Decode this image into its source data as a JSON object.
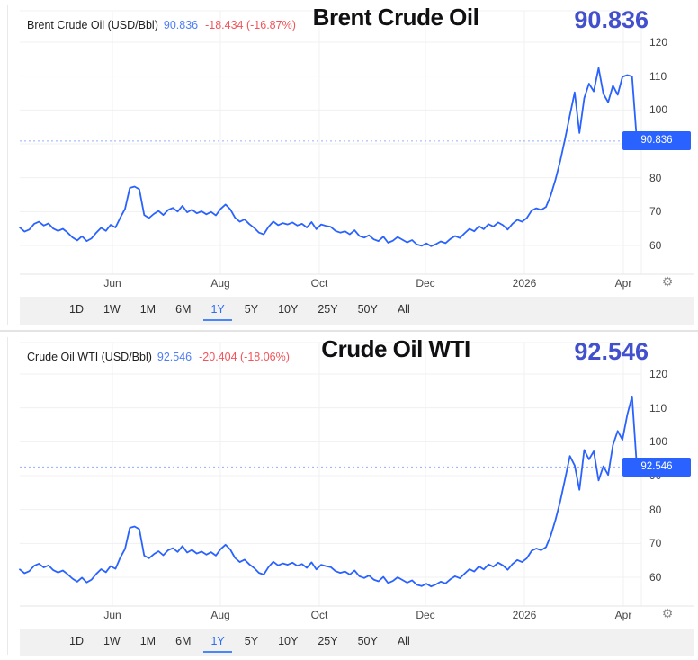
{
  "colors": {
    "line_blue": "#2962ff",
    "badge_bg": "#2962ff",
    "badge_text": "#ffffff",
    "big_price_blue": "#4350ce",
    "legend_price_blue": "#4e7df7",
    "change_red": "#f2545b",
    "grid": "#f0f0f0",
    "separator": "#e6e6e6",
    "toolbar_bg": "#f1f1f1",
    "active_range_blue": "#2e6ff2"
  },
  "icons": {
    "settings": "⚙"
  },
  "widgets": [
    {
      "legend": {
        "instrument": "Brent Crude Oil (USD/Bbl)",
        "price": "90.836",
        "change": "-18.434 (-16.87%)"
      },
      "title": "Brent Crude Oil",
      "big_price": "90.836",
      "axis_badge": "90.836",
      "range_buttons": [
        "1D",
        "1W",
        "1M",
        "6M",
        "1Y",
        "5Y",
        "10Y",
        "25Y",
        "50Y",
        "All"
      ],
      "active_range": "1Y"
    },
    {
      "legend": {
        "instrument": "Crude Oil WTI (USD/Bbl)",
        "price": "92.546",
        "change": "-20.404 (-18.06%)"
      },
      "title": "Crude Oil WTI",
      "big_price": "92.546",
      "axis_badge": "92.546",
      "range_buttons": [
        "1D",
        "1W",
        "1M",
        "6M",
        "1Y",
        "5Y",
        "10Y",
        "25Y",
        "50Y",
        "All"
      ],
      "active_range": "1Y"
    }
  ],
  "chart_data": [
    {
      "type": "line",
      "title": "Brent Crude Oil",
      "unit": "USD/Bbl",
      "legend_position": "top-left",
      "grid": true,
      "x_labels": [
        "Jun",
        "Aug",
        "Oct",
        "Dec",
        "2026",
        "Apr"
      ],
      "y_ticks": [
        120,
        110,
        100,
        90,
        80,
        70,
        60
      ],
      "ylim": [
        55,
        122
      ],
      "last_price": 90.836,
      "change": "-18.434",
      "change_pct": "-16.87%",
      "values": [
        65.3,
        64.1,
        64.7,
        66.4,
        67.0,
        65.9,
        66.5,
        65.0,
        64.3,
        64.9,
        63.8,
        62.4,
        61.5,
        62.7,
        61.3,
        62.1,
        63.8,
        65.2,
        64.3,
        66.1,
        65.3,
        68.2,
        70.8,
        77.0,
        77.4,
        76.6,
        69.0,
        68.1,
        69.3,
        70.2,
        69.0,
        70.5,
        71.1,
        70.0,
        71.7,
        69.8,
        70.6,
        69.5,
        70.1,
        69.2,
        69.9,
        68.9,
        70.8,
        72.1,
        70.7,
        68.2,
        67.0,
        67.7,
        66.3,
        65.2,
        63.8,
        63.3,
        65.5,
        67.1,
        66.0,
        66.6,
        66.2,
        66.8,
        65.9,
        66.4,
        65.3,
        66.9,
        64.8,
        66.2,
        65.8,
        65.5,
        64.3,
        63.8,
        64.2,
        63.3,
        64.5,
        62.8,
        62.3,
        63.0,
        61.8,
        61.3,
        62.6,
        60.8,
        61.4,
        62.5,
        61.7,
        60.9,
        61.6,
        60.3,
        59.9,
        60.6,
        59.8,
        60.4,
        61.2,
        60.7,
        61.9,
        62.8,
        62.2,
        63.6,
        64.9,
        64.2,
        65.7,
        64.8,
        66.3,
        65.6,
        66.8,
        66.0,
        64.7,
        66.4,
        67.6,
        67.0,
        68.1,
        70.3,
        71.0,
        70.5,
        71.4,
        74.8,
        79.5,
        85.0,
        91.5,
        98.5,
        105.2,
        93.2,
        103.5,
        107.8,
        105.5,
        112.4,
        104.8,
        102.3,
        107.2,
        104.5,
        109.8,
        110.3,
        109.9,
        90.836
      ]
    },
    {
      "type": "line",
      "title": "Crude Oil WTI",
      "unit": "USD/Bbl",
      "legend_position": "top-left",
      "grid": true,
      "x_labels": [
        "Jun",
        "Aug",
        "Oct",
        "Dec",
        "2026",
        "Apr"
      ],
      "y_ticks": [
        120,
        110,
        100,
        90,
        80,
        70,
        60
      ],
      "ylim": [
        55,
        122
      ],
      "last_price": 92.546,
      "change": "-20.404",
      "change_pct": "-18.06%",
      "values": [
        62.3,
        61.2,
        61.8,
        63.4,
        64.0,
        62.9,
        63.5,
        62.1,
        61.4,
        62.0,
        60.9,
        59.6,
        58.7,
        59.9,
        58.5,
        59.3,
        61.0,
        62.4,
        61.5,
        63.3,
        62.5,
        65.8,
        68.4,
        74.6,
        75.0,
        74.2,
        66.4,
        65.6,
        66.8,
        67.7,
        66.5,
        68.0,
        68.6,
        67.5,
        69.2,
        67.3,
        68.1,
        67.0,
        67.6,
        66.7,
        67.4,
        66.4,
        68.3,
        69.6,
        68.2,
        65.7,
        64.5,
        65.2,
        63.8,
        62.7,
        61.3,
        60.8,
        63.0,
        64.6,
        63.5,
        64.1,
        63.7,
        64.3,
        63.4,
        63.9,
        62.8,
        64.4,
        62.3,
        63.7,
        63.3,
        63.0,
        61.8,
        61.3,
        61.7,
        60.8,
        62.0,
        60.3,
        59.8,
        60.5,
        59.3,
        58.8,
        60.1,
        58.3,
        58.9,
        60.0,
        59.2,
        58.4,
        59.1,
        57.8,
        57.4,
        58.1,
        57.3,
        57.9,
        58.7,
        58.2,
        59.4,
        60.3,
        59.7,
        61.1,
        62.4,
        61.7,
        63.2,
        62.3,
        63.8,
        63.1,
        64.3,
        63.5,
        62.2,
        63.9,
        65.1,
        64.5,
        65.6,
        67.8,
        68.5,
        68.0,
        68.9,
        72.3,
        77.0,
        82.5,
        89.0,
        95.8,
        93.0,
        85.8,
        97.6,
        94.8,
        97.2,
        88.6,
        92.8,
        90.2,
        99.0,
        103.2,
        100.6,
        108.0,
        113.4,
        92.546
      ]
    }
  ]
}
